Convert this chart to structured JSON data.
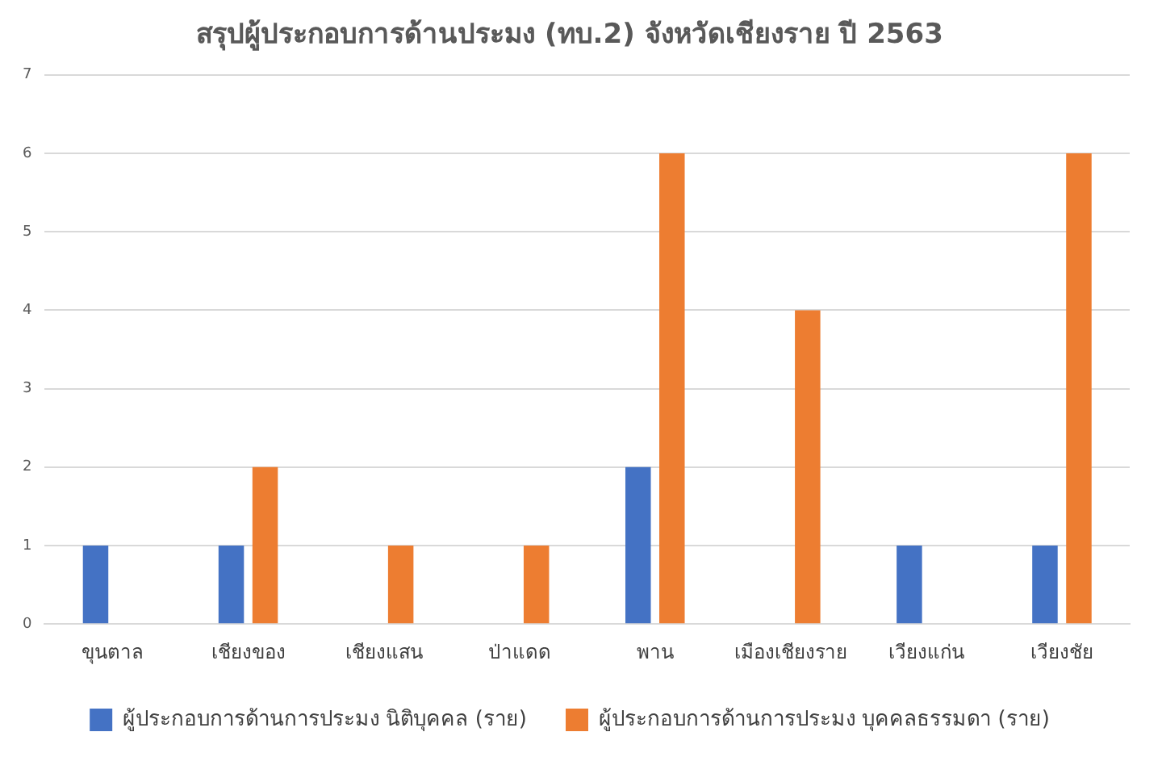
{
  "chart_data": {
    "type": "bar",
    "title": "สรุปผู้ประกอบการด้านประมง (ทบ.2) จังหวัดเชียงราย ปี 2563",
    "categories": [
      "ขุนตาล",
      "เชียงของ",
      "เชียงแสน",
      "ป่าแดด",
      "พาน",
      "เมืองเชียงราย",
      "เวียงแก่น",
      "เวียงชัย"
    ],
    "series": [
      {
        "name": "ผู้ประกอบการด้านการประมง นิติบุคคล (ราย)",
        "color": "#4472c4",
        "values": [
          1,
          1,
          0,
          0,
          2,
          0,
          1,
          1
        ]
      },
      {
        "name": "ผู้ประกอบการด้านการประมง บุคคลธรรมดา (ราย)",
        "color": "#ed7d31",
        "values": [
          0,
          2,
          1,
          1,
          6,
          4,
          0,
          6
        ]
      }
    ],
    "ylim": [
      0,
      7
    ],
    "yticks": [
      0,
      1,
      2,
      3,
      4,
      5,
      6,
      7
    ],
    "grid": "y",
    "legend": "bottom"
  }
}
